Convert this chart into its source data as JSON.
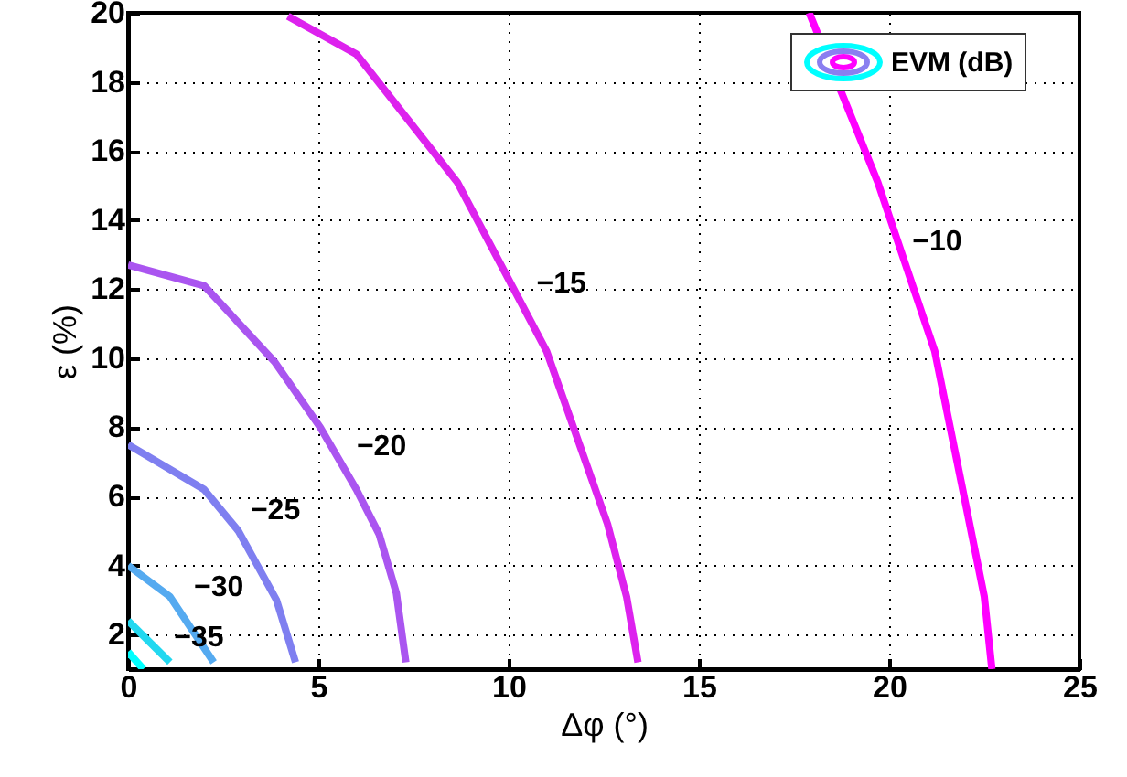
{
  "chart_data": {
    "type": "line",
    "xlabel": "Δφ (°)",
    "ylabel": "ε (%)",
    "xlim": [
      0,
      25
    ],
    "xticks": [
      0,
      5,
      10,
      15,
      20,
      25
    ],
    "ylim": [
      1,
      20
    ],
    "yticks": [
      2,
      4,
      6,
      8,
      10,
      12,
      14,
      16,
      18,
      20
    ],
    "grid": true,
    "series": [
      {
        "name": "−10",
        "color": "#ff00ff",
        "x": [
          17.9,
          19.7,
          21.2,
          22.5,
          22.7
        ],
        "values": [
          20,
          15.1,
          10.2,
          3.1,
          1
        ]
      },
      {
        "name": "−15",
        "color": "#dd22ee",
        "x": [
          4.2,
          6.0,
          8.65,
          11.0,
          12.6,
          13.1,
          13.4
        ],
        "values": [
          19.9,
          18.8,
          15.1,
          10.2,
          5.2,
          3.1,
          1.2
        ]
      },
      {
        "name": "−20",
        "color": "#aa55f0",
        "x": [
          0,
          2.0,
          3.85,
          5.05,
          6.0,
          6.6,
          7.05,
          7.3
        ],
        "values": [
          12.7,
          12.1,
          9.9,
          8.0,
          6.2,
          4.9,
          3.2,
          1.2
        ]
      },
      {
        "name": "−25",
        "color": "#7f7ff0",
        "x": [
          0,
          2.0,
          2.9,
          3.9,
          4.4
        ],
        "values": [
          7.5,
          6.2,
          5.0,
          3.0,
          1.2
        ]
      },
      {
        "name": "−30",
        "color": "#55aaf0",
        "x": [
          0,
          1.1,
          2.25
        ],
        "values": [
          4.0,
          3.1,
          1.2
        ]
      },
      {
        "name": "−35",
        "color": "#22d8f0",
        "x": [
          0,
          1.1
        ],
        "values": [
          2.4,
          1.2
        ]
      },
      {
        "color": "#00ffff",
        "x": [
          0,
          0.4
        ],
        "values": [
          1.5,
          1.0
        ]
      }
    ],
    "annotations": [
      "EVM (dB)"
    ]
  }
}
